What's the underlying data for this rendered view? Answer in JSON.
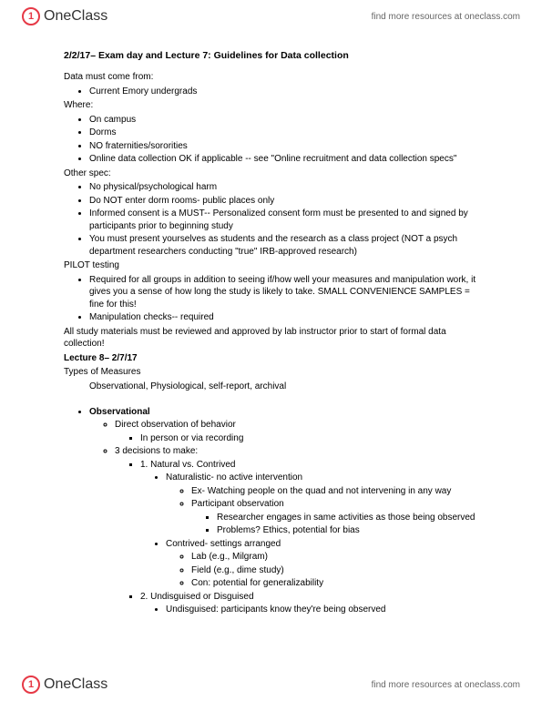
{
  "brand": {
    "name": "OneClass",
    "tagline": "find more resources at oneclass.com",
    "logo_color": "#e63946"
  },
  "title": "2/2/17– Exam day and Lecture 7: Guidelines for Data collection",
  "data_from_label": "Data must come from:",
  "data_from_items": [
    "Current Emory undergrads"
  ],
  "where_label": "Where:",
  "where_items": [
    "On campus",
    "Dorms",
    "NO fraternities/sororities",
    "Online data collection OK if applicable -- see \"Online recruitment and data collection specs\""
  ],
  "other_spec_label": "Other spec:",
  "other_spec_items": [
    "No physical/psychological harm",
    "Do NOT enter dorm rooms- public places only",
    "Informed consent is a MUST-- Personalized consent form must be presented to and signed by participants prior to beginning study",
    "You must present yourselves as students and the research as a class project (NOT a psych department researchers conducting \"true\" IRB-approved research)"
  ],
  "pilot_label": "PILOT testing",
  "pilot_items": [
    "Required for all groups in addition to seeing if/how well your measures and manipulation work, it gives you a sense of how long the study is likely to take. SMALL CONVENIENCE SAMPLES = fine for this!",
    "Manipulation checks-- required"
  ],
  "review_note": "All study materials must be reviewed and approved by lab instructor prior to start of formal data collection!",
  "lecture8_label": "Lecture 8– 2/7/17",
  "types_label": "Types of Measures",
  "types_list": "Observational, Physiological, self-report, archival",
  "obs_heading": "Observational",
  "obs": {
    "direct": "Direct observation of behavior",
    "direct_sub": "In person or via recording",
    "decisions": "3 decisions to make:",
    "d1": "1. Natural vs. Contrived",
    "naturalistic": "Naturalistic- no active intervention",
    "nat_ex": "Ex- Watching people on the quad and not intervening in any way",
    "participant": "Participant observation",
    "participant_sub": "Researcher engages in same activities as those being observed",
    "participant_prob": "Problems? Ethics, potential for bias",
    "contrived": "Contrived- settings arranged",
    "contrived_lab": "Lab (e.g., Milgram)",
    "contrived_field": "Field (e.g., dime study)",
    "contrived_con": "Con: potential for generalizability",
    "d2": "2. Undisguised or Disguised",
    "undisguised": "Undisguised: participants know they're being observed"
  }
}
